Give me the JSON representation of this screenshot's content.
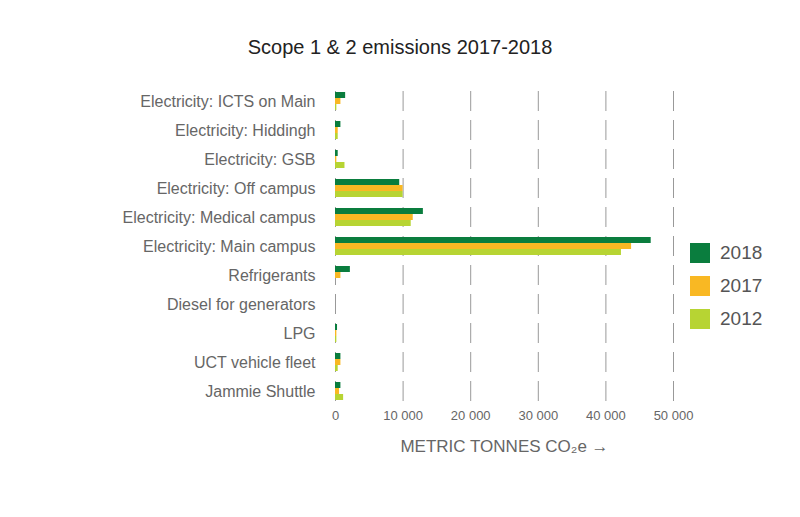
{
  "chart_data": {
    "type": "bar",
    "orientation": "horizontal",
    "title": "Scope 1 & 2 emissions 2017-2018",
    "xlabel": "METRIC TONNES CO₂e",
    "categories": [
      "Electricity: ICTS on Main",
      "Electricity: Hiddingh",
      "Electricity: GSB",
      "Electricity: Off campus",
      "Electricity: Medical campus",
      "Electricity: Main campus",
      "Refrigerants",
      "Diesel for generators",
      "LPG",
      "UCT vehicle fleet",
      "Jammie Shuttle"
    ],
    "series": [
      {
        "name": "2018",
        "color": "#0a7d3e",
        "values": [
          1500,
          800,
          400,
          9500,
          13000,
          46700,
          2200,
          0,
          300,
          800,
          800
        ]
      },
      {
        "name": "2017",
        "color": "#f9b823",
        "values": [
          800,
          400,
          200,
          10000,
          11500,
          43800,
          800,
          0,
          200,
          800,
          600
        ]
      },
      {
        "name": "2012",
        "color": "#b7d433",
        "values": [
          200,
          400,
          1400,
          10000,
          11200,
          42300,
          0,
          0,
          200,
          400,
          1200
        ]
      }
    ],
    "xlim": [
      0,
      50000
    ],
    "xticks": [
      0,
      {
        "value": 10000,
        "label": "10 000"
      },
      {
        "value": 20000,
        "label": "20 000"
      },
      {
        "value": 30000,
        "label": "30 000"
      },
      {
        "value": 40000,
        "label": "40 000"
      },
      {
        "value": 50000,
        "label": "50 000"
      }
    ],
    "grid": true,
    "legend": "right"
  }
}
